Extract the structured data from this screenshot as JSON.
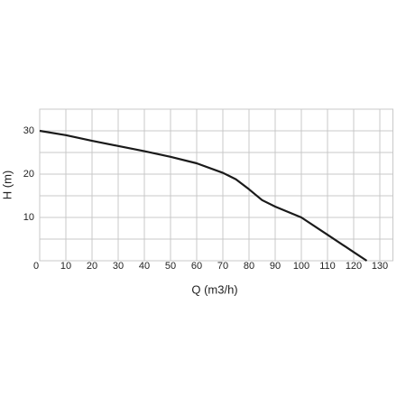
{
  "chart_data": {
    "type": "line",
    "x_label": "Q (m3/h)",
    "y_label": "H (m)",
    "xlim": [
      0,
      135
    ],
    "ylim": [
      0,
      35
    ],
    "xticks": [
      0,
      10,
      20,
      30,
      40,
      50,
      60,
      70,
      80,
      90,
      100,
      110,
      120,
      130
    ],
    "yticks": [
      10,
      20,
      30
    ],
    "ygrid": [
      0,
      5,
      10,
      15,
      20,
      25,
      30,
      35
    ],
    "grid": true,
    "series": [
      {
        "color": "#1a1a1a",
        "x": [
          0,
          10,
          20,
          30,
          40,
          50,
          60,
          70,
          75,
          80,
          85,
          90,
          100,
          110,
          120,
          125
        ],
        "values": [
          30,
          29,
          27.7,
          26.5,
          25.3,
          24,
          22.5,
          20.3,
          18.8,
          16.5,
          14,
          12.5,
          10,
          6,
          2,
          0
        ]
      }
    ]
  }
}
